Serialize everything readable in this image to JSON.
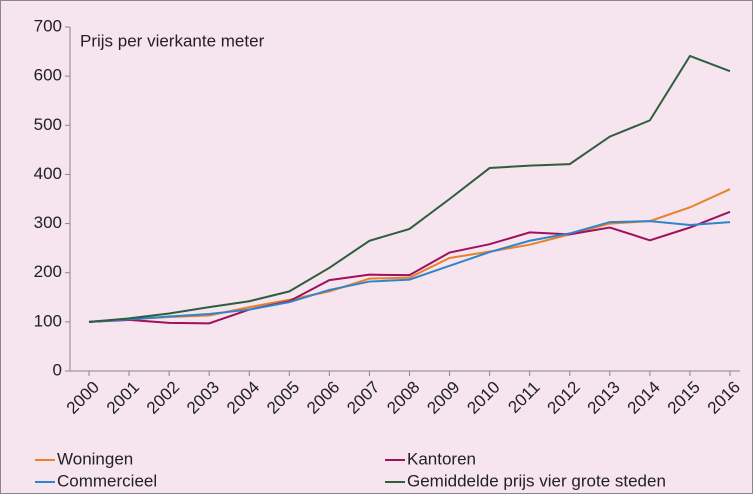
{
  "chart_data": {
    "type": "line",
    "title": "Prijs per vierkante meter",
    "categories": [
      "2000",
      "2001",
      "2002",
      "2003",
      "2004",
      "2005",
      "2006",
      "2007",
      "2008",
      "2009",
      "2010",
      "2011",
      "2012",
      "2013",
      "2014",
      "2015",
      "2016"
    ],
    "series": [
      {
        "name": "Woningen",
        "color": "#e8822a",
        "values": [
          100,
          105,
          110,
          113,
          130,
          145,
          162,
          188,
          190,
          230,
          243,
          257,
          278,
          300,
          305,
          333,
          370
        ]
      },
      {
        "name": "Kantoren",
        "color": "#a0105f",
        "values": [
          100,
          104,
          98,
          97,
          125,
          142,
          185,
          196,
          195,
          241,
          258,
          282,
          278,
          292,
          266,
          292,
          324
        ]
      },
      {
        "name": "Commercieel",
        "color": "#2e86c8",
        "values": [
          100,
          105,
          111,
          116,
          125,
          140,
          165,
          182,
          186,
          214,
          242,
          265,
          280,
          303,
          305,
          297,
          303
        ]
      },
      {
        "name": "Gemiddelde prijs vier grote steden",
        "color": "#2e5e3e",
        "values": [
          100,
          107,
          117,
          130,
          142,
          162,
          210,
          265,
          289,
          350,
          413,
          418,
          421,
          477,
          510,
          641,
          610
        ]
      }
    ],
    "ylim": [
      0,
      700
    ],
    "yticks": [
      0,
      100,
      200,
      300,
      400,
      500,
      600,
      700
    ],
    "grid": false,
    "legend": "bottom"
  }
}
